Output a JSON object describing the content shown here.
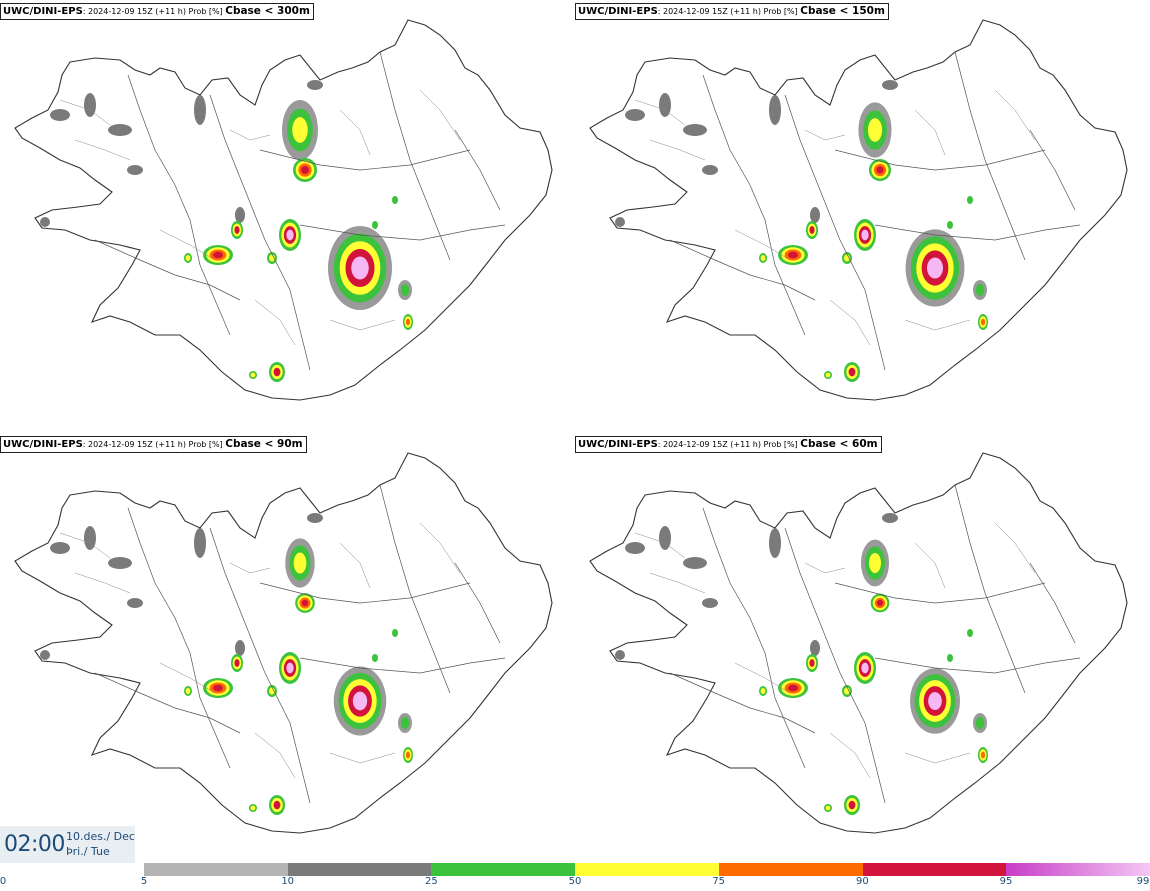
{
  "panels": [
    {
      "model": "UWC/DINI-EPS",
      "info": ": 2024-12-09 15Z (+11 h) Prob [%]",
      "param": "Cbase < 300m"
    },
    {
      "model": "UWC/DINI-EPS",
      "info": ": 2024-12-09 15Z (+11 h) Prob [%]",
      "param": "Cbase < 150m"
    },
    {
      "model": "UWC/DINI-EPS",
      "info": ": 2024-12-09 15Z (+11 h) Prob [%]",
      "param": "Cbase < 90m"
    },
    {
      "model": "UWC/DINI-EPS",
      "info": ": 2024-12-09 15Z (+11 h) Prob [%]",
      "param": "Cbase < 60m"
    }
  ],
  "valid_time": {
    "time": "02:00",
    "date_line1": "10.des./ Dec",
    "date_line2": "Þri./ Tue"
  },
  "legend": {
    "ticks": [
      "0",
      "5",
      "10",
      "25",
      "50",
      "75",
      "90",
      "95",
      "99"
    ],
    "bins": [
      {
        "from": 5,
        "to": 10,
        "color": "#b4b4b4"
      },
      {
        "from": 10,
        "to": 25,
        "color": "#7a7a7a"
      },
      {
        "from": 25,
        "to": 50,
        "color": "#3cc23c"
      },
      {
        "from": 50,
        "to": 75,
        "color": "#ffff33"
      },
      {
        "from": 75,
        "to": 90,
        "color": "#ff6a00"
      },
      {
        "from": 90,
        "to": 95,
        "color": "#d2143c"
      },
      {
        "from": 95,
        "to": 99,
        "color": "#c83cc8",
        "to_color": "#f5c8f5"
      }
    ]
  }
}
